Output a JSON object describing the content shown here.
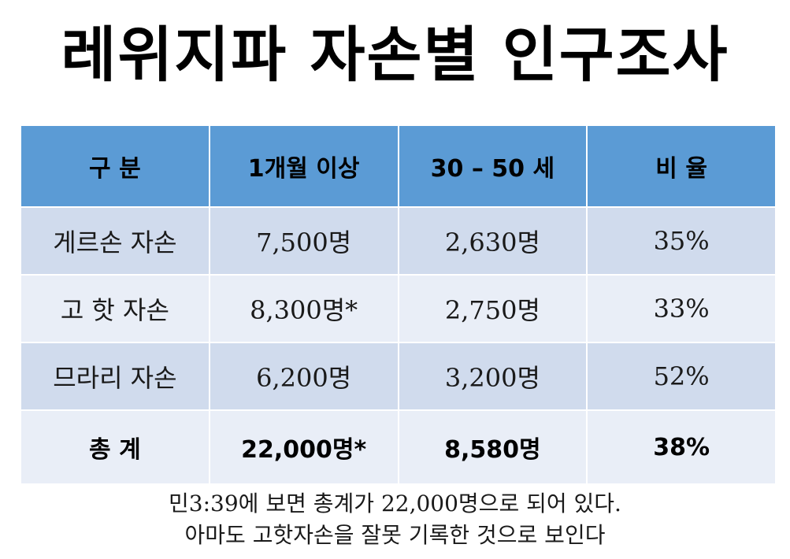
{
  "title": "레위지파 자손별 인구조사",
  "table": {
    "headers": [
      "구 분",
      "1개월 이상",
      "30 – 50 세",
      "비 율"
    ],
    "rows": [
      [
        "게르손 자손",
        "7,500명",
        "2,630명",
        "35%"
      ],
      [
        "고 핫 자손",
        "8,300명*",
        "2,750명",
        "33%"
      ],
      [
        "므라리 자손",
        "6,200명",
        "3,200명",
        "52%"
      ]
    ],
    "total": [
      "총 계",
      "22,000명*",
      "8,580명",
      "38%"
    ]
  },
  "note": {
    "line1": "민3:39에 보면 총계가 22,000명으로 되어 있다.",
    "line2": "아마도 고핫자손을 잘못 기록한 것으로 보인다"
  },
  "colors": {
    "header_bg": "#5b9bd5",
    "row_dark": "#d0dbed",
    "row_light": "#e9eef7"
  }
}
